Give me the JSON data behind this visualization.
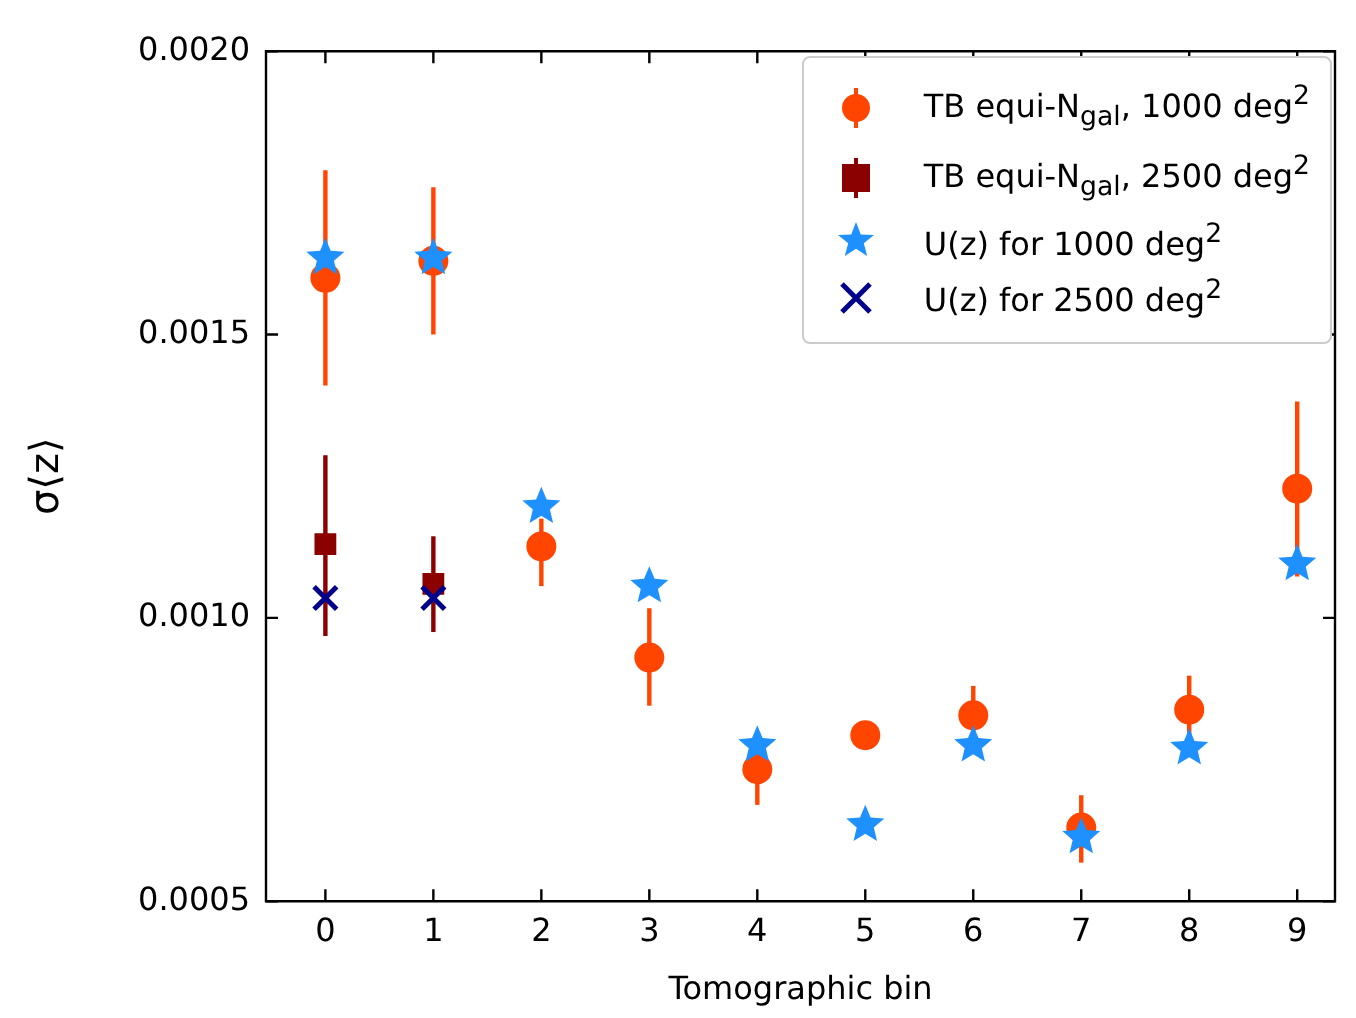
{
  "chart_data": {
    "type": "scatter",
    "xlabel": "Tomographic bin",
    "ylabel": "σ⟨z⟩",
    "xlim": [
      -0.55,
      9.35
    ],
    "xticks": [
      0,
      1,
      2,
      3,
      4,
      5,
      6,
      7,
      8,
      9
    ],
    "ylim": [
      0.0005,
      0.002
    ],
    "yticks": [
      {
        "value": 0.0005,
        "label": "0.0005"
      },
      {
        "value": 0.001,
        "label": "0.0010"
      },
      {
        "value": 0.0015,
        "label": "0.0015"
      },
      {
        "value": 0.002,
        "label": "0.0020"
      }
    ],
    "grid": false,
    "legend": "top right",
    "series": [
      {
        "name": "TB equi-N$_{gal}$, 1000 deg$^{2}$",
        "color": "#ff4500",
        "marker": "circle",
        "x": [
          0,
          1,
          2,
          3,
          4,
          5,
          6,
          7,
          8,
          9
        ],
        "values": [
          0.0016,
          0.00163,
          0.001126,
          0.00093,
          0.000733,
          0.000793,
          0.000828,
          0.00063,
          0.000838,
          0.001228
        ],
        "errors": [
          [
            0.00141,
            0.00179
          ],
          [
            0.0015,
            0.00176
          ],
          [
            0.001056,
            0.001175
          ],
          [
            0.000845,
            0.001017
          ],
          [
            0.00067,
            0.00078
          ],
          null,
          [
            0.00078,
            0.00088
          ],
          [
            0.000568,
            0.000687
          ],
          [
            0.00078,
            0.000898
          ],
          [
            0.001073,
            0.001382
          ]
        ]
      },
      {
        "name": "TB equi-N$_{gal}$, 2500 deg$^{2}$",
        "color": "#8b0000",
        "marker": "square",
        "x": [
          0,
          1
        ],
        "values": [
          0.00113,
          0.00106
        ],
        "errors": [
          [
            0.000968,
            0.001287
          ],
          [
            0.000975,
            0.001144
          ]
        ]
      },
      {
        "name": "U(z) for 1000 deg$^{2}$",
        "color": "#1e90ff",
        "marker": "star",
        "x": [
          0,
          1,
          2,
          3,
          4,
          5,
          6,
          7,
          8,
          9
        ],
        "values": [
          0.001635,
          0.001635,
          0.001196,
          0.001056,
          0.000775,
          0.000635,
          0.000775,
          0.000613,
          0.00077,
          0.001095
        ]
      },
      {
        "name": "U(z) for 2500 deg$^{2}$",
        "color": "#00008b",
        "marker": "cross",
        "x": [
          0,
          1
        ],
        "values": [
          0.001035,
          0.001035
        ]
      }
    ]
  }
}
